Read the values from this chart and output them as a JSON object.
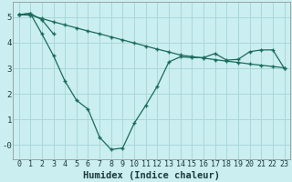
{
  "background_color": "#cbeef0",
  "grid_color": "#a8d8d8",
  "line_color": "#1a6b5a",
  "x_values": [
    0,
    1,
    2,
    3,
    4,
    5,
    6,
    7,
    8,
    9,
    10,
    11,
    12,
    13,
    14,
    15,
    16,
    17,
    18,
    19,
    20,
    21,
    22,
    23
  ],
  "series_main": [
    5.1,
    5.15,
    4.35,
    3.5,
    2.5,
    1.75,
    1.4,
    0.3,
    -0.18,
    -0.12,
    0.85,
    1.55,
    2.3,
    3.25,
    3.45,
    3.42,
    3.42,
    3.58,
    3.32,
    3.35,
    3.65,
    3.72,
    3.72,
    3.0
  ],
  "series_upper": [
    5.1,
    5.15,
    4.9,
    4.35,
    null,
    null,
    null,
    null,
    null,
    null,
    null,
    null,
    null,
    null,
    null,
    null,
    null,
    null,
    null,
    null,
    null,
    null,
    null,
    null
  ],
  "series_trend": [
    5.1,
    5.08,
    4.95,
    4.82,
    4.7,
    4.58,
    4.46,
    4.35,
    4.23,
    4.11,
    3.99,
    3.87,
    3.75,
    3.64,
    3.52,
    3.46,
    3.4,
    3.34,
    3.28,
    3.23,
    3.17,
    3.12,
    3.07,
    3.02
  ],
  "xlabel": "Humidex (Indice chaleur)",
  "xlim": [
    -0.5,
    23.5
  ],
  "ylim": [
    -0.55,
    5.6
  ],
  "yticks": [
    0,
    1,
    2,
    3,
    4,
    5
  ],
  "ytick_labels": [
    "-0",
    "1",
    "2",
    "3",
    "4",
    "5"
  ],
  "xtick_labels": [
    "0",
    "1",
    "2",
    "3",
    "4",
    "5",
    "6",
    "7",
    "8",
    "9",
    "10",
    "11",
    "12",
    "13",
    "14",
    "15",
    "16",
    "17",
    "18",
    "19",
    "20",
    "21",
    "22",
    "23"
  ],
  "xlabel_fontsize": 7.5,
  "tick_fontsize": 6.5
}
